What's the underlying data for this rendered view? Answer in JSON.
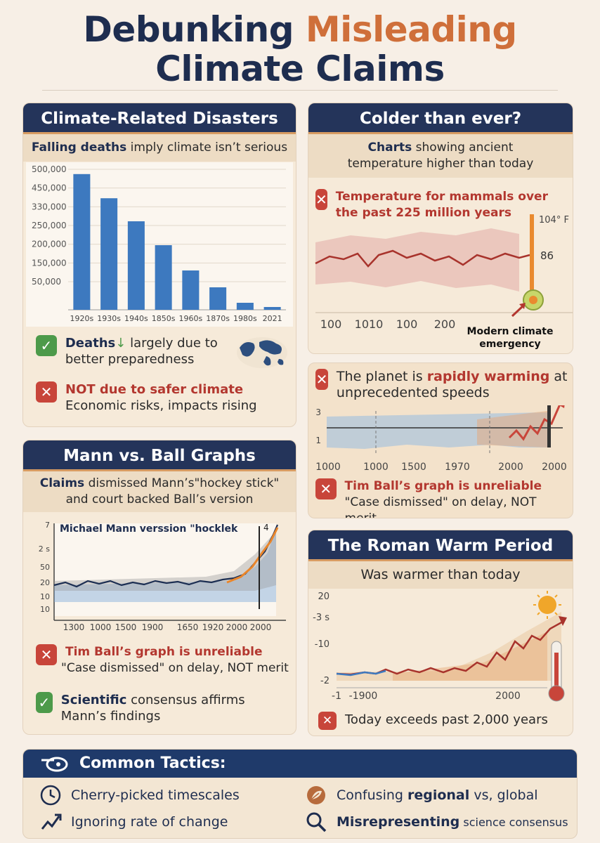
{
  "header": {
    "title_part1": "Debunking",
    "title_accent": "Misleading",
    "title_line2": "Climate Claims"
  },
  "disasters": {
    "title": "Climate-Related Disasters",
    "sub_bold": "Falling deaths",
    "sub_rest": " imply climate isn’t serious",
    "check_bold": "Deaths",
    "check_arrow": "↓",
    "check_rest": " largely due to better preparedness",
    "x_bold": "NOT due to safer climate",
    "x_rest": "Economic risks, impacts rising"
  },
  "colder": {
    "title": "Colder than ever?",
    "sub_bold": "Charts",
    "sub_rest": " showing ancient temperature higher than today",
    "claim": "Temperature for mammals over the past 225 million years",
    "annot_top": "104° F",
    "annot_mid": "86",
    "xticks": [
      "100",
      "1010",
      "100",
      "200"
    ],
    "callout": "Modern climate emergency"
  },
  "warming": {
    "claim_pre": "The planet is ",
    "claim_bold": "rapidly warming",
    "claim_post": " at unprecedented speeds",
    "yticks": [
      "3",
      "1"
    ],
    "xticks": [
      "1000",
      "1000",
      "1500",
      "1970",
      "2000",
      "2000"
    ],
    "x_bold": "Tim Ball’s graph is unreliable",
    "x_rest": "\"Case dismissed\" on delay, NOT merit"
  },
  "mann": {
    "title": "Mann vs. Ball Graphs",
    "sub_bold": "Claims",
    "sub_rest": " dismissed Mann’s\"hockey stick\" and court backed Ball’s version",
    "chart_label": "Michael Mann verssion \"hocklek",
    "chart_corner": "4",
    "yticks": [
      "7",
      "2 s",
      "50",
      "20",
      "10",
      "10"
    ],
    "xticks": [
      "1300",
      "1000",
      "1500",
      "1900",
      "1650",
      "1920",
      "2000",
      "2000"
    ],
    "x_pre": "Tim Ball’s graph is ",
    "x_bold": "unreliable",
    "x_rest": "\"Case dismissed\" on delay, NOT merit",
    "check_bold": "Scientific",
    "check_rest": " consensus affirms Mann’s findings"
  },
  "roman": {
    "title": "The Roman Warm Period",
    "sub": "Was warmer than today",
    "yticks": [
      "20",
      "-3 s",
      "-10",
      "-2"
    ],
    "xticks": [
      "-1",
      "-1900",
      "2000"
    ],
    "x_rest": "Today exceeds past 2,000 years"
  },
  "tactics": {
    "title": "Common Tactics:",
    "items": [
      {
        "text": "Cherry-picked timescales",
        "icon": "clock-icon"
      },
      {
        "text_pre": "Confusing ",
        "text_bold": "regional",
        "text_post": " vs, global",
        "icon": "leaf-icon"
      },
      {
        "text": "Ignoring rate of change",
        "icon": "trend-up-icon"
      },
      {
        "text_bold": "Misrepresenting",
        "text_post": " science consensus",
        "icon": "magnifier-icon"
      }
    ]
  },
  "chart_data": {
    "type": "bar",
    "categories": [
      "1920s",
      "1930s",
      "1940s",
      "1850s",
      "1960s",
      "1870s",
      "1980s",
      "2021"
    ],
    "values": [
      483000,
      397000,
      315000,
      230000,
      140000,
      80000,
      25000,
      10000
    ],
    "ytick_labels": [
      "500,000",
      "450,000",
      "330,000",
      "250,000",
      "200,000",
      "150,000",
      "50,000"
    ],
    "color": "#3d79bf"
  }
}
